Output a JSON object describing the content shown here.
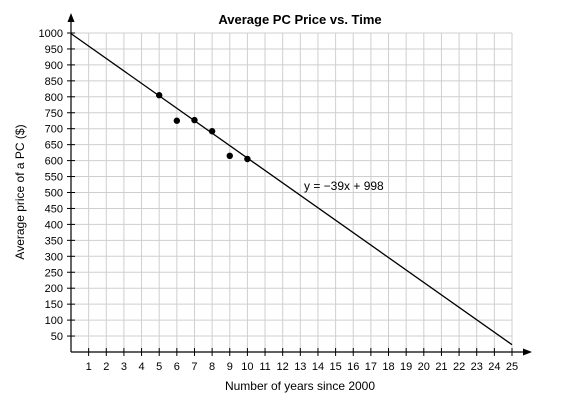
{
  "chart_data": {
    "type": "scatter",
    "title": "Average PC Price vs. Time",
    "xlabel": "Number of years since 2000",
    "ylabel": "Average price of a PC ($)",
    "xlim": [
      0,
      25
    ],
    "ylim": [
      0,
      1000
    ],
    "xticks": [
      1,
      2,
      3,
      4,
      5,
      6,
      7,
      8,
      9,
      10,
      11,
      12,
      13,
      14,
      15,
      16,
      17,
      18,
      19,
      20,
      21,
      22,
      23,
      24,
      25
    ],
    "yticks": [
      50,
      100,
      150,
      200,
      250,
      300,
      350,
      400,
      450,
      500,
      550,
      600,
      650,
      700,
      750,
      800,
      850,
      900,
      950,
      1000
    ],
    "grid": true,
    "points": [
      {
        "x": 5,
        "y": 805
      },
      {
        "x": 6,
        "y": 725
      },
      {
        "x": 7,
        "y": 727
      },
      {
        "x": 8,
        "y": 692
      },
      {
        "x": 9,
        "y": 615
      },
      {
        "x": 10,
        "y": 605
      }
    ],
    "line": {
      "slope": -39,
      "intercept": 998,
      "label": "y = −39x + 998"
    }
  }
}
